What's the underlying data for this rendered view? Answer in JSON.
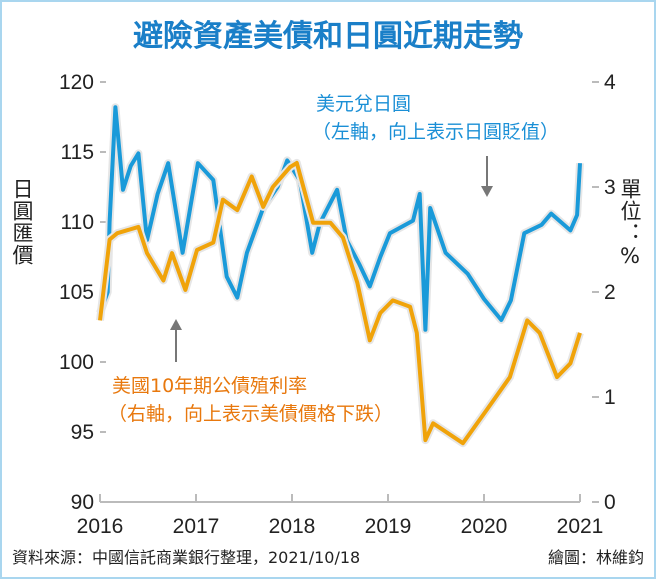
{
  "chart_data": {
    "type": "line",
    "title": "避險資產美債和日圓近期走勢",
    "xlim": [
      2016,
      2021
    ],
    "x_ticks": [
      "2016",
      "2017",
      "2018",
      "2019",
      "2020",
      "2021"
    ],
    "y_left": {
      "label": "日圓匯價",
      "lim": [
        90,
        120
      ],
      "ticks": [
        "90",
        "95",
        "100",
        "105",
        "110",
        "115",
        "120"
      ]
    },
    "y_right": {
      "label": "單位：%",
      "lim": [
        0,
        4
      ],
      "ticks": [
        "0",
        "1",
        "2",
        "3",
        "4"
      ]
    },
    "grid": false,
    "series": [
      {
        "name": "美元兌日圓",
        "axis": "left",
        "color": "#1a9ad9",
        "annotation": [
          "美元兌日圓",
          "（左軸，向上表示日圓貶值）"
        ],
        "points": [
          [
            2016.0,
            103.5
          ],
          [
            2016.08,
            105
          ],
          [
            2016.1,
            110
          ],
          [
            2016.16,
            118.2
          ],
          [
            2016.24,
            112.3
          ],
          [
            2016.32,
            114
          ],
          [
            2016.4,
            114.9
          ],
          [
            2016.49,
            108.7
          ],
          [
            2016.6,
            112
          ],
          [
            2016.71,
            114.2
          ],
          [
            2016.86,
            107.8
          ],
          [
            2016.94,
            111
          ],
          [
            2017.02,
            114.2
          ],
          [
            2017.18,
            113.0
          ],
          [
            2017.32,
            106.1
          ],
          [
            2017.43,
            104.6
          ],
          [
            2017.53,
            107.8
          ],
          [
            2017.7,
            111.0
          ],
          [
            2017.85,
            112.5
          ],
          [
            2017.95,
            114.4
          ],
          [
            2018.08,
            113.0
          ],
          [
            2018.21,
            107.8
          ],
          [
            2018.29,
            109.9
          ],
          [
            2018.47,
            112.3
          ],
          [
            2018.57,
            108.7
          ],
          [
            2018.7,
            107
          ],
          [
            2018.81,
            105.4
          ],
          [
            2018.92,
            107.5
          ],
          [
            2019.02,
            109.2
          ],
          [
            2019.26,
            110.1
          ],
          [
            2019.33,
            112.0
          ],
          [
            2019.39,
            102.3
          ],
          [
            2019.44,
            111.0
          ],
          [
            2019.6,
            107.8
          ],
          [
            2019.83,
            106.3
          ],
          [
            2020.0,
            104.5
          ],
          [
            2020.18,
            103.0
          ],
          [
            2020.28,
            104.4
          ],
          [
            2020.42,
            109.2
          ],
          [
            2020.6,
            109.8
          ],
          [
            2020.7,
            110.6
          ],
          [
            2020.9,
            109.4
          ],
          [
            2020.97,
            110.5
          ],
          [
            2021.0,
            114.2
          ]
        ]
      },
      {
        "name": "美國10年期公債殖利率",
        "axis": "right",
        "color": "#f0a30a",
        "annotation": [
          "美國10年期公債殖利率",
          "（右軸，向上表示美債價格下跌）"
        ],
        "points": [
          [
            2016.0,
            1.73
          ],
          [
            2016.1,
            2.5
          ],
          [
            2016.18,
            2.56
          ],
          [
            2016.4,
            2.62
          ],
          [
            2016.49,
            2.37
          ],
          [
            2016.66,
            2.11
          ],
          [
            2016.75,
            2.37
          ],
          [
            2016.89,
            2.02
          ],
          [
            2017.01,
            2.4
          ],
          [
            2017.18,
            2.47
          ],
          [
            2017.28,
            2.88
          ],
          [
            2017.43,
            2.78
          ],
          [
            2017.58,
            3.1
          ],
          [
            2017.7,
            2.81
          ],
          [
            2017.8,
            3.0
          ],
          [
            2017.98,
            3.19
          ],
          [
            2018.05,
            3.23
          ],
          [
            2018.22,
            2.66
          ],
          [
            2018.4,
            2.66
          ],
          [
            2018.53,
            2.52
          ],
          [
            2018.68,
            2.09
          ],
          [
            2018.81,
            1.54
          ],
          [
            2018.92,
            1.8
          ],
          [
            2019.05,
            1.92
          ],
          [
            2019.23,
            1.86
          ],
          [
            2019.3,
            1.61
          ],
          [
            2019.39,
            0.59
          ],
          [
            2019.47,
            0.75
          ],
          [
            2019.78,
            0.56
          ],
          [
            2020.03,
            0.88
          ],
          [
            2020.27,
            1.19
          ],
          [
            2020.45,
            1.73
          ],
          [
            2020.58,
            1.61
          ],
          [
            2020.76,
            1.19
          ],
          [
            2020.9,
            1.32
          ],
          [
            2021.0,
            1.61
          ]
        ]
      }
    ],
    "source": "資料來源：中國信託商業銀行整理，2021/10/18",
    "credit": "繪圖：林維鈞"
  }
}
